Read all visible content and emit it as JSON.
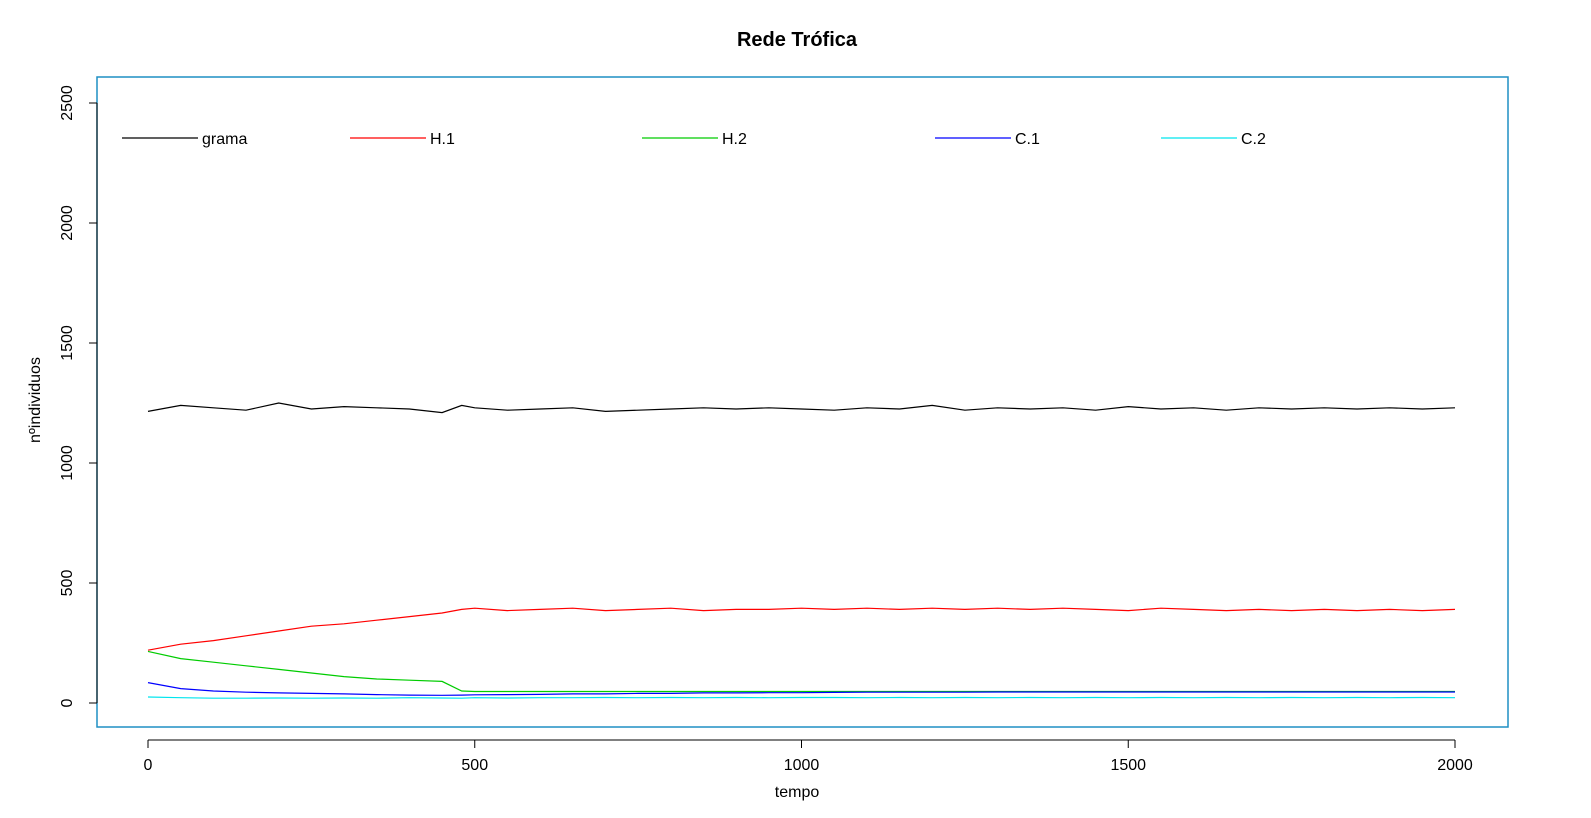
{
  "chart_data": {
    "type": "line",
    "title": "Rede Trófica",
    "xlabel": "tempo",
    "ylabel": "nºindividuos",
    "xlim": [
      0,
      2000
    ],
    "ylim": [
      0,
      2500
    ],
    "x_ticks": [
      "0",
      "500",
      "1000",
      "1500",
      "2000"
    ],
    "y_ticks": [
      "0",
      "500",
      "1000",
      "1500",
      "2000",
      "2500"
    ],
    "grid": false,
    "frame_color": "#1f8fc4",
    "legend": {
      "placement": "top",
      "orientation": "horizontal",
      "entries": [
        "grama",
        "H.1",
        "H.2",
        "C.1",
        "C.2"
      ]
    },
    "x": [
      0,
      50,
      100,
      150,
      200,
      250,
      300,
      350,
      400,
      450,
      480,
      500,
      550,
      600,
      650,
      700,
      750,
      800,
      850,
      900,
      950,
      1000,
      1050,
      1100,
      1150,
      1200,
      1250,
      1300,
      1350,
      1400,
      1450,
      1500,
      1550,
      1600,
      1650,
      1700,
      1750,
      1800,
      1850,
      1900,
      1950,
      2000
    ],
    "series": [
      {
        "name": "grama",
        "color": "#000000",
        "values": [
          1215,
          1240,
          1230,
          1220,
          1250,
          1225,
          1235,
          1230,
          1225,
          1210,
          1240,
          1230,
          1220,
          1225,
          1230,
          1215,
          1220,
          1225,
          1230,
          1225,
          1230,
          1225,
          1220,
          1230,
          1225,
          1240,
          1220,
          1230,
          1225,
          1230,
          1220,
          1235,
          1225,
          1230,
          1220,
          1230,
          1225,
          1230,
          1225,
          1230,
          1225,
          1230
        ]
      },
      {
        "name": "H.1",
        "color": "#ff0000",
        "values": [
          220,
          245,
          260,
          280,
          300,
          320,
          330,
          345,
          360,
          375,
          390,
          395,
          385,
          390,
          395,
          385,
          390,
          395,
          385,
          390,
          390,
          395,
          390,
          395,
          390,
          395,
          390,
          395,
          390,
          395,
          390,
          385,
          395,
          390,
          385,
          390,
          385,
          390,
          385,
          390,
          385,
          390
        ]
      },
      {
        "name": "H.2",
        "color": "#00cc00",
        "values": [
          215,
          185,
          170,
          155,
          140,
          125,
          110,
          100,
          95,
          90,
          50,
          48,
          48,
          48,
          48,
          48,
          48,
          48,
          48,
          48,
          48,
          48,
          48,
          48,
          48,
          48,
          48,
          48,
          48,
          48,
          48,
          48,
          48,
          48,
          48,
          48,
          48,
          48,
          48,
          48,
          48,
          48
        ]
      },
      {
        "name": "C.1",
        "color": "#0000ff",
        "values": [
          85,
          60,
          50,
          45,
          42,
          40,
          38,
          35,
          33,
          32,
          33,
          34,
          35,
          36,
          38,
          38,
          40,
          40,
          42,
          42,
          43,
          43,
          44,
          45,
          45,
          45,
          45,
          46,
          46,
          46,
          46,
          46,
          46,
          46,
          46,
          46,
          46,
          46,
          46,
          46,
          46,
          46
        ]
      },
      {
        "name": "C.2",
        "color": "#00e5ee",
        "values": [
          25,
          22,
          20,
          20,
          21,
          20,
          21,
          20,
          22,
          21,
          20,
          22,
          21,
          22,
          22,
          23,
          22,
          23,
          22,
          23,
          22,
          23,
          23,
          22,
          23,
          22,
          23,
          22,
          23,
          22,
          23,
          22,
          23,
          22,
          23,
          22,
          23,
          22,
          23,
          22,
          23,
          22
        ]
      }
    ]
  }
}
